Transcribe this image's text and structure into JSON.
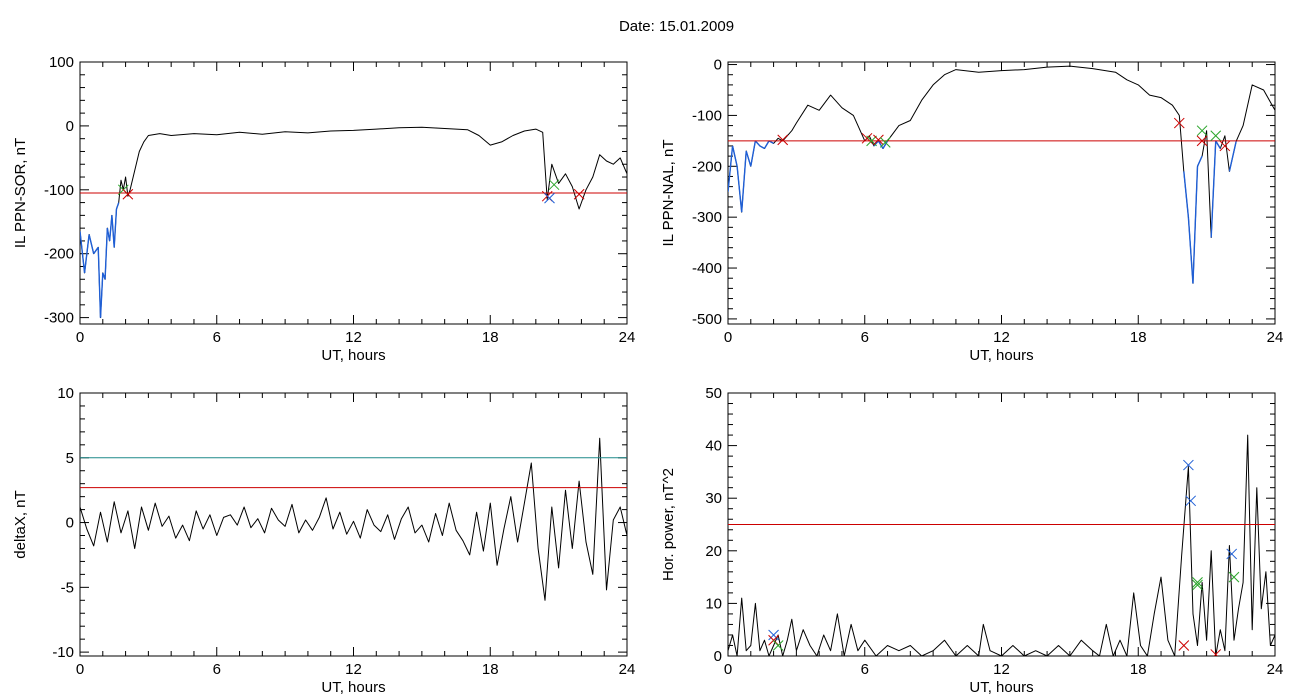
{
  "figure_title": "Date:  15.01.2009",
  "chart_data": [
    {
      "type": "line",
      "panel": "top-left",
      "ylabel": "IL PPN-SOR, nT",
      "xlabel": "UT, hours",
      "xlim": [
        0,
        24
      ],
      "ylim": [
        -310,
        100
      ],
      "xticks": [
        0,
        6,
        12,
        18,
        24
      ],
      "yticks": [
        100,
        0,
        -100,
        -200,
        -300
      ],
      "threshold_lines": [
        {
          "y": -105,
          "color": "#cc0000"
        }
      ],
      "series": [
        {
          "color": "#000000",
          "highlight_color": "#1f5fd6",
          "highlight_below": -105,
          "x": [
            0,
            0.2,
            0.4,
            0.6,
            0.8,
            0.9,
            1.0,
            1.1,
            1.2,
            1.3,
            1.4,
            1.5,
            1.6,
            1.7,
            1.8,
            1.9,
            2.0,
            2.1,
            2.2,
            2.4,
            2.6,
            2.8,
            3.0,
            3.5,
            4,
            5,
            6,
            7,
            8,
            9,
            10,
            11,
            12,
            13,
            14,
            15,
            16,
            17,
            17.5,
            18,
            18.5,
            19,
            19.5,
            20,
            20.3,
            20.5,
            20.7,
            21,
            21.3,
            21.6,
            21.9,
            22.2,
            22.5,
            22.8,
            23.1,
            23.4,
            23.7,
            24
          ],
          "values": [
            -165,
            -230,
            -170,
            -200,
            -190,
            -300,
            -230,
            -240,
            -160,
            -180,
            -140,
            -190,
            -130,
            -120,
            -85,
            -100,
            -80,
            -110,
            -100,
            -70,
            -40,
            -25,
            -15,
            -12,
            -15,
            -12,
            -14,
            -10,
            -13,
            -9,
            -11,
            -8,
            -7,
            -5,
            -3,
            -2,
            -4,
            -6,
            -15,
            -30,
            -25,
            -15,
            -8,
            -5,
            -10,
            -115,
            -60,
            -90,
            -75,
            -95,
            -130,
            -100,
            -80,
            -45,
            -55,
            -60,
            -50,
            -75
          ]
        }
      ],
      "markers": [
        {
          "x": 1.9,
          "y": -100,
          "color": "#2aa52a"
        },
        {
          "x": 2.1,
          "y": -107,
          "color": "#cc0000"
        },
        {
          "x": 20.5,
          "y": -110,
          "color": "#cc0000"
        },
        {
          "x": 20.6,
          "y": -113,
          "color": "#1f5fd6"
        },
        {
          "x": 20.8,
          "y": -92,
          "color": "#2aa52a"
        },
        {
          "x": 21.9,
          "y": -107,
          "color": "#cc0000"
        }
      ]
    },
    {
      "type": "line",
      "panel": "top-right",
      "ylabel": "IL PPN-NAL, nT",
      "xlabel": "UT, hours",
      "xlim": [
        0,
        24
      ],
      "ylim": [
        -510,
        5
      ],
      "xticks": [
        0,
        6,
        12,
        18,
        24
      ],
      "yticks": [
        0,
        -100,
        -200,
        -300,
        -400,
        -500
      ],
      "threshold_lines": [
        {
          "y": -150,
          "color": "#cc0000"
        }
      ],
      "series": [
        {
          "color": "#000000",
          "highlight_color": "#1f5fd6",
          "highlight_below": -150,
          "x": [
            0,
            0.2,
            0.4,
            0.6,
            0.8,
            1.0,
            1.2,
            1.4,
            1.6,
            1.8,
            2.0,
            2.2,
            2.4,
            2.6,
            2.8,
            3.0,
            3.5,
            4.0,
            4.5,
            5.0,
            5.5,
            6.0,
            6.2,
            6.4,
            6.6,
            6.8,
            7.0,
            7.5,
            8.0,
            8.5,
            9.0,
            9.5,
            10,
            11,
            12,
            13,
            14,
            15,
            16,
            17,
            17.5,
            18,
            18.5,
            19,
            19.5,
            19.8,
            20.0,
            20.2,
            20.4,
            20.6,
            20.8,
            21.0,
            21.2,
            21.4,
            21.6,
            21.8,
            22.0,
            22.3,
            22.6,
            23.0,
            23.5,
            24
          ],
          "values": [
            -250,
            -160,
            -200,
            -290,
            -170,
            -200,
            -150,
            -160,
            -165,
            -150,
            -155,
            -145,
            -150,
            -140,
            -130,
            -115,
            -80,
            -90,
            -60,
            -85,
            -100,
            -150,
            -140,
            -160,
            -150,
            -165,
            -150,
            -120,
            -110,
            -70,
            -40,
            -20,
            -10,
            -15,
            -12,
            -10,
            -5,
            -3,
            -8,
            -15,
            -30,
            -40,
            -60,
            -65,
            -80,
            -100,
            -210,
            -300,
            -430,
            -200,
            -180,
            -130,
            -340,
            -150,
            -165,
            -140,
            -210,
            -150,
            -120,
            -40,
            -50,
            -90
          ]
        }
      ],
      "markers": [
        {
          "x": 2.4,
          "y": -148,
          "color": "#cc0000"
        },
        {
          "x": 6.1,
          "y": -145,
          "color": "#cc0000"
        },
        {
          "x": 6.3,
          "y": -150,
          "color": "#2aa52a"
        },
        {
          "x": 6.6,
          "y": -148,
          "color": "#cc0000"
        },
        {
          "x": 6.9,
          "y": -153,
          "color": "#2aa52a"
        },
        {
          "x": 19.8,
          "y": -115,
          "color": "#cc0000"
        },
        {
          "x": 20.8,
          "y": -130,
          "color": "#2aa52a"
        },
        {
          "x": 20.8,
          "y": -150,
          "color": "#cc0000"
        },
        {
          "x": 21.4,
          "y": -140,
          "color": "#2aa52a"
        },
        {
          "x": 21.8,
          "y": -160,
          "color": "#cc0000"
        }
      ]
    },
    {
      "type": "line",
      "panel": "bottom-left",
      "ylabel": "deltaX, nT",
      "xlabel": "UT, hours",
      "xlim": [
        0,
        24
      ],
      "ylim": [
        -10.3,
        10
      ],
      "xticks": [
        0,
        6,
        12,
        18,
        24
      ],
      "yticks": [
        10,
        5,
        0,
        -5,
        -10
      ],
      "ytick_labels": [
        "10",
        "5",
        "0",
        "-5",
        "-10"
      ],
      "threshold_lines": [
        {
          "y": 5,
          "color": "#1f8a8a"
        },
        {
          "y": 2.7,
          "color": "#cc0000"
        }
      ],
      "series": [
        {
          "color": "#000000",
          "x": [
            0,
            0.3,
            0.6,
            0.9,
            1.2,
            1.5,
            1.8,
            2.1,
            2.4,
            2.7,
            3.0,
            3.3,
            3.6,
            3.9,
            4.2,
            4.5,
            4.8,
            5.1,
            5.4,
            5.7,
            6.0,
            6.3,
            6.6,
            6.9,
            7.2,
            7.5,
            7.8,
            8.1,
            8.4,
            8.7,
            9.0,
            9.3,
            9.6,
            9.9,
            10.2,
            10.5,
            10.8,
            11.1,
            11.4,
            11.7,
            12.0,
            12.3,
            12.6,
            12.9,
            13.2,
            13.5,
            13.8,
            14.1,
            14.4,
            14.7,
            15.0,
            15.3,
            15.6,
            15.9,
            16.2,
            16.5,
            16.8,
            17.1,
            17.4,
            17.7,
            18.0,
            18.3,
            18.6,
            18.9,
            19.2,
            19.5,
            19.8,
            20.1,
            20.4,
            20.7,
            21.0,
            21.3,
            21.6,
            21.9,
            22.2,
            22.5,
            22.8,
            23.1,
            23.4,
            23.7,
            24.0
          ],
          "values": [
            1.2,
            -0.5,
            -1.8,
            0.8,
            -1.5,
            1.6,
            -0.8,
            0.9,
            -2.0,
            1.2,
            -0.6,
            1.5,
            -0.3,
            0.5,
            -1.2,
            -0.2,
            -1.4,
            0.9,
            -0.5,
            0.6,
            -1.0,
            0.4,
            0.6,
            -0.2,
            1.2,
            -0.4,
            0.3,
            -0.8,
            1.1,
            0.2,
            -0.3,
            1.4,
            -0.8,
            0.2,
            -0.6,
            0.4,
            1.9,
            -0.5,
            0.8,
            -0.9,
            0.1,
            -1.2,
            1.0,
            -0.2,
            -0.7,
            0.6,
            -1.3,
            0.3,
            1.2,
            -0.8,
            -0.2,
            -1.5,
            0.7,
            -1.0,
            1.5,
            -0.6,
            -1.4,
            -2.5,
            0.8,
            -2.2,
            1.5,
            -3.3,
            -0.5,
            2.0,
            -1.5,
            1.5,
            4.6,
            -2.0,
            -6.0,
            1.2,
            -3.5,
            2.5,
            -2.0,
            3.2,
            -1.5,
            -4.0,
            6.5,
            -5.2,
            0.2,
            1.2,
            -1.0
          ]
        }
      ],
      "markers": []
    },
    {
      "type": "line",
      "panel": "bottom-right",
      "ylabel": "Hor. power, nT^2",
      "xlabel": "UT, hours",
      "xlim": [
        0,
        24
      ],
      "ylim": [
        0,
        50
      ],
      "xticks": [
        0,
        6,
        12,
        18,
        24
      ],
      "yticks": [
        50,
        40,
        30,
        20,
        10,
        0
      ],
      "threshold_lines": [
        {
          "y": 25,
          "color": "#cc0000"
        }
      ],
      "series": [
        {
          "color": "#000000",
          "x": [
            0,
            0.2,
            0.4,
            0.6,
            0.8,
            1.0,
            1.2,
            1.4,
            1.6,
            1.8,
            2.0,
            2.2,
            2.4,
            2.6,
            2.8,
            3.0,
            3.3,
            3.6,
            3.9,
            4.2,
            4.5,
            4.8,
            5.1,
            5.4,
            5.7,
            6.0,
            6.5,
            7,
            7.5,
            8,
            8.5,
            9,
            9.5,
            10,
            10.5,
            11,
            11.2,
            11.5,
            12,
            12.5,
            13,
            13.5,
            14,
            14.5,
            15,
            15.5,
            16,
            16.3,
            16.6,
            16.9,
            17.2,
            17.5,
            17.8,
            18.1,
            18.4,
            18.7,
            19.0,
            19.3,
            19.6,
            19.9,
            20.2,
            20.4,
            20.6,
            20.8,
            21.0,
            21.2,
            21.4,
            21.6,
            21.8,
            22.0,
            22.2,
            22.4,
            22.6,
            22.8,
            23.0,
            23.2,
            23.4,
            23.6,
            23.8,
            24.0
          ],
          "values": [
            1,
            4,
            0,
            11,
            1,
            2,
            10,
            1,
            3,
            0,
            2,
            4,
            0,
            3,
            7,
            1,
            5,
            2,
            0,
            4,
            1,
            8,
            0,
            6,
            1,
            3,
            0,
            2,
            1,
            2,
            0,
            1,
            3,
            0,
            2,
            0,
            6,
            1,
            0,
            2,
            0,
            1,
            0,
            2,
            0,
            3,
            1,
            0,
            6,
            0,
            3,
            0,
            12,
            2,
            0,
            8,
            15,
            3,
            0,
            19,
            36,
            8,
            2,
            14,
            3,
            20,
            0,
            5,
            1,
            21,
            3,
            9,
            14,
            42,
            5,
            32,
            9,
            16,
            2,
            4
          ]
        }
      ],
      "markers": [
        {
          "x": 2.0,
          "y": 4,
          "color": "#1f5fd6"
        },
        {
          "x": 2.0,
          "y": 3,
          "color": "#cc0000"
        },
        {
          "x": 2.2,
          "y": 2,
          "color": "#2aa52a"
        },
        {
          "x": 20.2,
          "y": 36.3,
          "color": "#1f5fd6"
        },
        {
          "x": 20.3,
          "y": 29.5,
          "color": "#1f5fd6"
        },
        {
          "x": 20.0,
          "y": 2,
          "color": "#cc0000"
        },
        {
          "x": 20.6,
          "y": 14,
          "color": "#2aa52a"
        },
        {
          "x": 20.6,
          "y": 13.5,
          "color": "#2aa52a"
        },
        {
          "x": 21.4,
          "y": 0.3,
          "color": "#cc0000"
        },
        {
          "x": 22.1,
          "y": 19.4,
          "color": "#1f5fd6"
        },
        {
          "x": 22.2,
          "y": 15,
          "color": "#2aa52a"
        }
      ]
    }
  ]
}
